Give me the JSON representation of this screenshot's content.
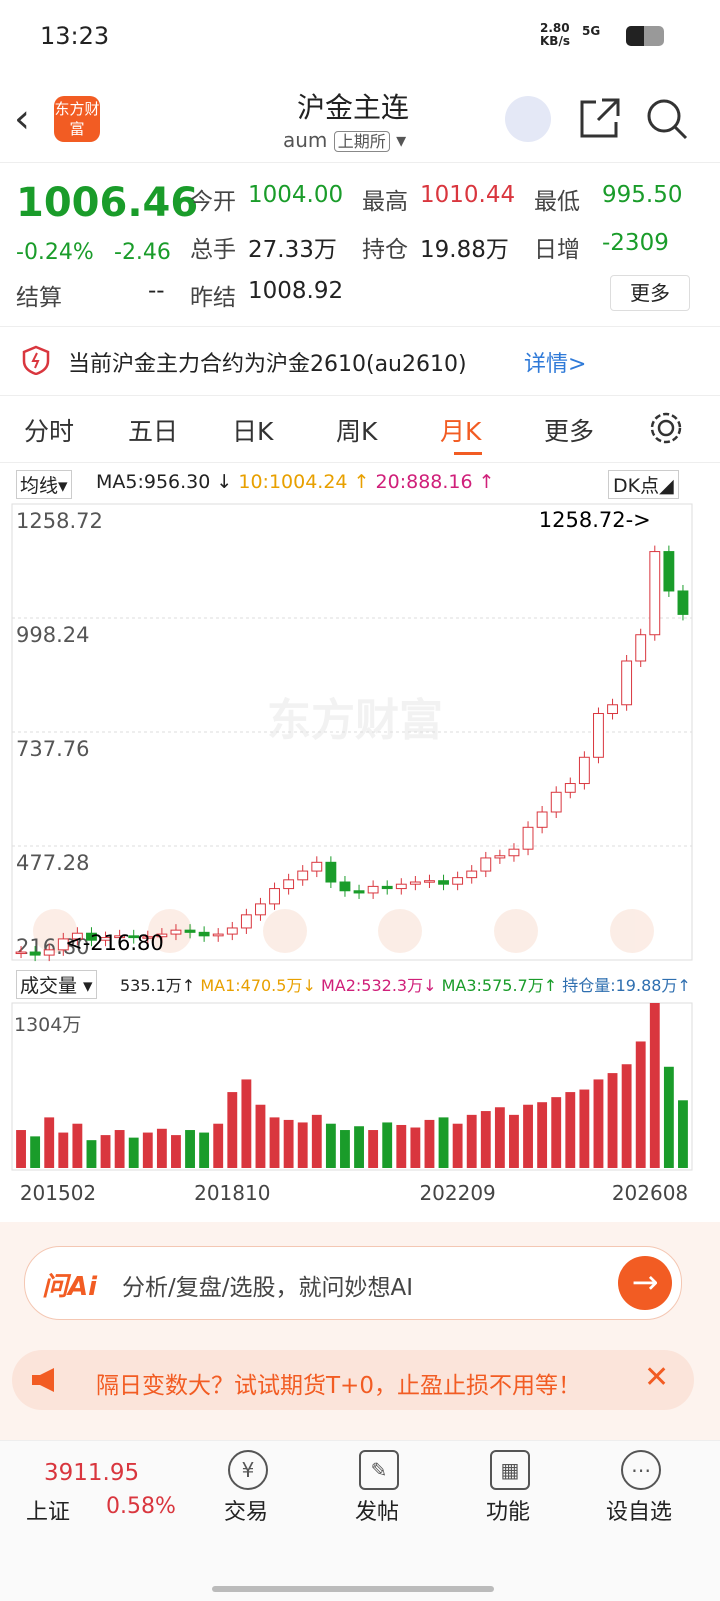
{
  "status": {
    "time": "13:23",
    "speed": "2.80",
    "speed_unit": "KB/s",
    "network": "5G"
  },
  "header": {
    "logo": "东方财富",
    "title": "沪金主连",
    "code": "aum",
    "exchange": "上期所"
  },
  "quote": {
    "price": "1006.46",
    "change_pct": "-0.24%",
    "change": "-2.46",
    "fields": [
      {
        "label": "今开",
        "value": "1004.00"
      },
      {
        "label": "最高",
        "value": "1010.44"
      },
      {
        "label": "最低",
        "value": "995.50"
      },
      {
        "label": "总手",
        "value": "27.33万"
      },
      {
        "label": "持仓",
        "value": "19.88万"
      },
      {
        "label": "日增",
        "value": "-2309"
      },
      {
        "label": "结算",
        "value": "--"
      },
      {
        "label": "昨结",
        "value": "1008.92"
      }
    ],
    "more": "更多"
  },
  "notice": {
    "text": "当前沪金主力合约为沪金2610(au2610)",
    "link": "详情>"
  },
  "tabs": {
    "items": [
      "分时",
      "五日",
      "日K",
      "周K",
      "月K",
      "更多"
    ],
    "active": 4
  },
  "indicator": {
    "name": "均线",
    "ma": [
      "MA5:956.30 ↓",
      "10:1004.24 ↑",
      "20:888.16 ↑"
    ],
    "dk": "DK点"
  },
  "volume_legend": {
    "name": "成交量",
    "items": [
      "535.1万↑",
      "MA1:470.5万↓",
      "MA2:532.3万↓",
      "MA3:575.7万↑",
      "持仓量:19.88万↑"
    ]
  },
  "chart_data": [
    {
      "type": "candlestick",
      "annotations": [
        "1258.72->",
        "<-216.80"
      ],
      "values": [
        235,
        228,
        240,
        265,
        278,
        262,
        268,
        272,
        268,
        270,
        276,
        285,
        280,
        272,
        276,
        290,
        320,
        345,
        380,
        400,
        420,
        440,
        395,
        375,
        370,
        385,
        380,
        390,
        395,
        398,
        390,
        405,
        420,
        450,
        455,
        470,
        520,
        555,
        600,
        620,
        680,
        780,
        800,
        900,
        960,
        1150,
        1060,
        1006.46
      ],
      "ylim": [
        216.8,
        1258.72
      ],
      "yticks": [
        {
          "value": 1258.72,
          "label": "1258.72"
        },
        {
          "value": 998.24,
          "label": "998.24"
        },
        {
          "value": 737.76,
          "label": "737.76"
        },
        {
          "value": 477.28,
          "label": "477.28"
        },
        {
          "value": 216.8,
          "label": "216.80"
        }
      ],
      "up_color": "#d9363e",
      "down_color": "#1a9c2a"
    },
    {
      "type": "bar",
      "categories": [
        "201502",
        null,
        null,
        null,
        null,
        null,
        null,
        null,
        null,
        null,
        null,
        null,
        null,
        null,
        null,
        "201810",
        null,
        null,
        null,
        null,
        null,
        null,
        null,
        null,
        null,
        null,
        null,
        null,
        null,
        null,
        null,
        "202209",
        null,
        null,
        null,
        null,
        null,
        null,
        null,
        null,
        null,
        null,
        null,
        null,
        null,
        null,
        null,
        "202608"
      ],
      "values": [
        300,
        250,
        400,
        280,
        350,
        220,
        260,
        300,
        240,
        280,
        310,
        260,
        300,
        280,
        350,
        600,
        700,
        500,
        400,
        380,
        360,
        420,
        350,
        300,
        330,
        300,
        360,
        340,
        320,
        380,
        400,
        350,
        420,
        450,
        480,
        420,
        500,
        520,
        560,
        600,
        620,
        700,
        750,
        820,
        1000,
        1304,
        800,
        535.1
      ],
      "ylim": [
        0,
        1304
      ],
      "yticks": [
        {
          "value": 1304,
          "label": "1304万"
        }
      ]
    }
  ],
  "ai": {
    "logo": "问Ai",
    "text": "分析/复盘/选股，就问妙想AI"
  },
  "promo": {
    "text": "隔日变数大？试试期货T+0，止盈止损不用等！"
  },
  "nav": {
    "index_value": "3911.95",
    "index_name": "上证",
    "index_pct": "0.58%",
    "items": [
      "交易",
      "发帖",
      "功能",
      "设自选"
    ]
  }
}
